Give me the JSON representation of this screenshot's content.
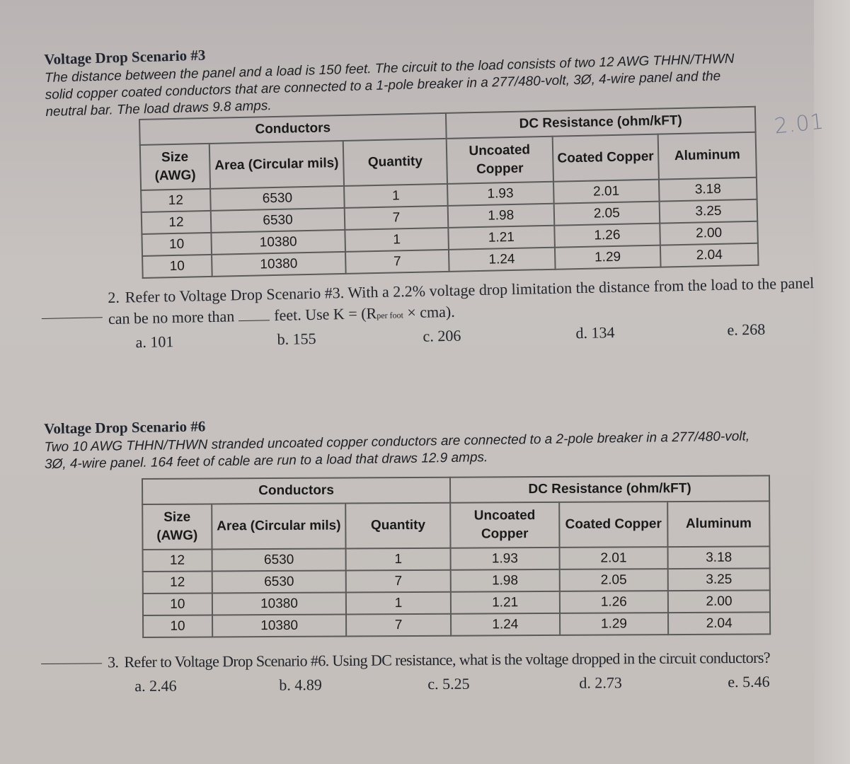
{
  "scenario3": {
    "title": "Voltage Drop Scenario #3",
    "description": "The distance between the panel and a load is 150 feet. The circuit to the load consists of two 12 AWG THHN/THWN solid copper coated conductors that are connected to a 1-pole breaker in a 277/480-volt, 3Ø, 4-wire panel and the neutral bar. The load draws 9.8 amps."
  },
  "scenario6": {
    "title": "Voltage Drop Scenario #6",
    "description": "Two 10 AWG THHN/THWN stranded uncoated copper conductors are connected to a 2-pole breaker in a 277/480-volt, 3Ø, 4-wire panel. 164 feet of cable are run to a load that draws 12.9 amps."
  },
  "table": {
    "group_conductors": "Conductors",
    "group_resistance": "DC Resistance (ohm/kFT)",
    "headers": [
      "Size (AWG)",
      "Area (Circular mils)",
      "Quantity",
      "Uncoated Copper",
      "Coated Copper",
      "Aluminum"
    ],
    "rows": [
      [
        "12",
        "6530",
        "1",
        "1.93",
        "2.01",
        "3.18"
      ],
      [
        "12",
        "6530",
        "7",
        "1.98",
        "2.05",
        "3.25"
      ],
      [
        "10",
        "10380",
        "1",
        "1.21",
        "1.26",
        "2.00"
      ],
      [
        "10",
        "10380",
        "7",
        "1.24",
        "1.29",
        "2.04"
      ]
    ]
  },
  "handwritten_note": "2.01",
  "question2": {
    "number": "2.",
    "text_part1": "Refer to Voltage Drop Scenario #3. With a 2.2% voltage drop limitation the distance from the load to the panel can be no more than",
    "text_part2": "feet. Use K = (R",
    "subscript": "per foot",
    "text_part3": " × cma).",
    "choices": [
      "a. 101",
      "b. 155",
      "c. 206",
      "d. 134",
      "e. 268"
    ]
  },
  "question3": {
    "number": "3.",
    "text": "Refer to Voltage Drop Scenario #6. Using DC resistance, what is the voltage dropped in the circuit conductors?",
    "choices": [
      "a. 2.46",
      "b. 4.89",
      "c. 5.25",
      "d. 2.73",
      "e. 5.46"
    ]
  }
}
